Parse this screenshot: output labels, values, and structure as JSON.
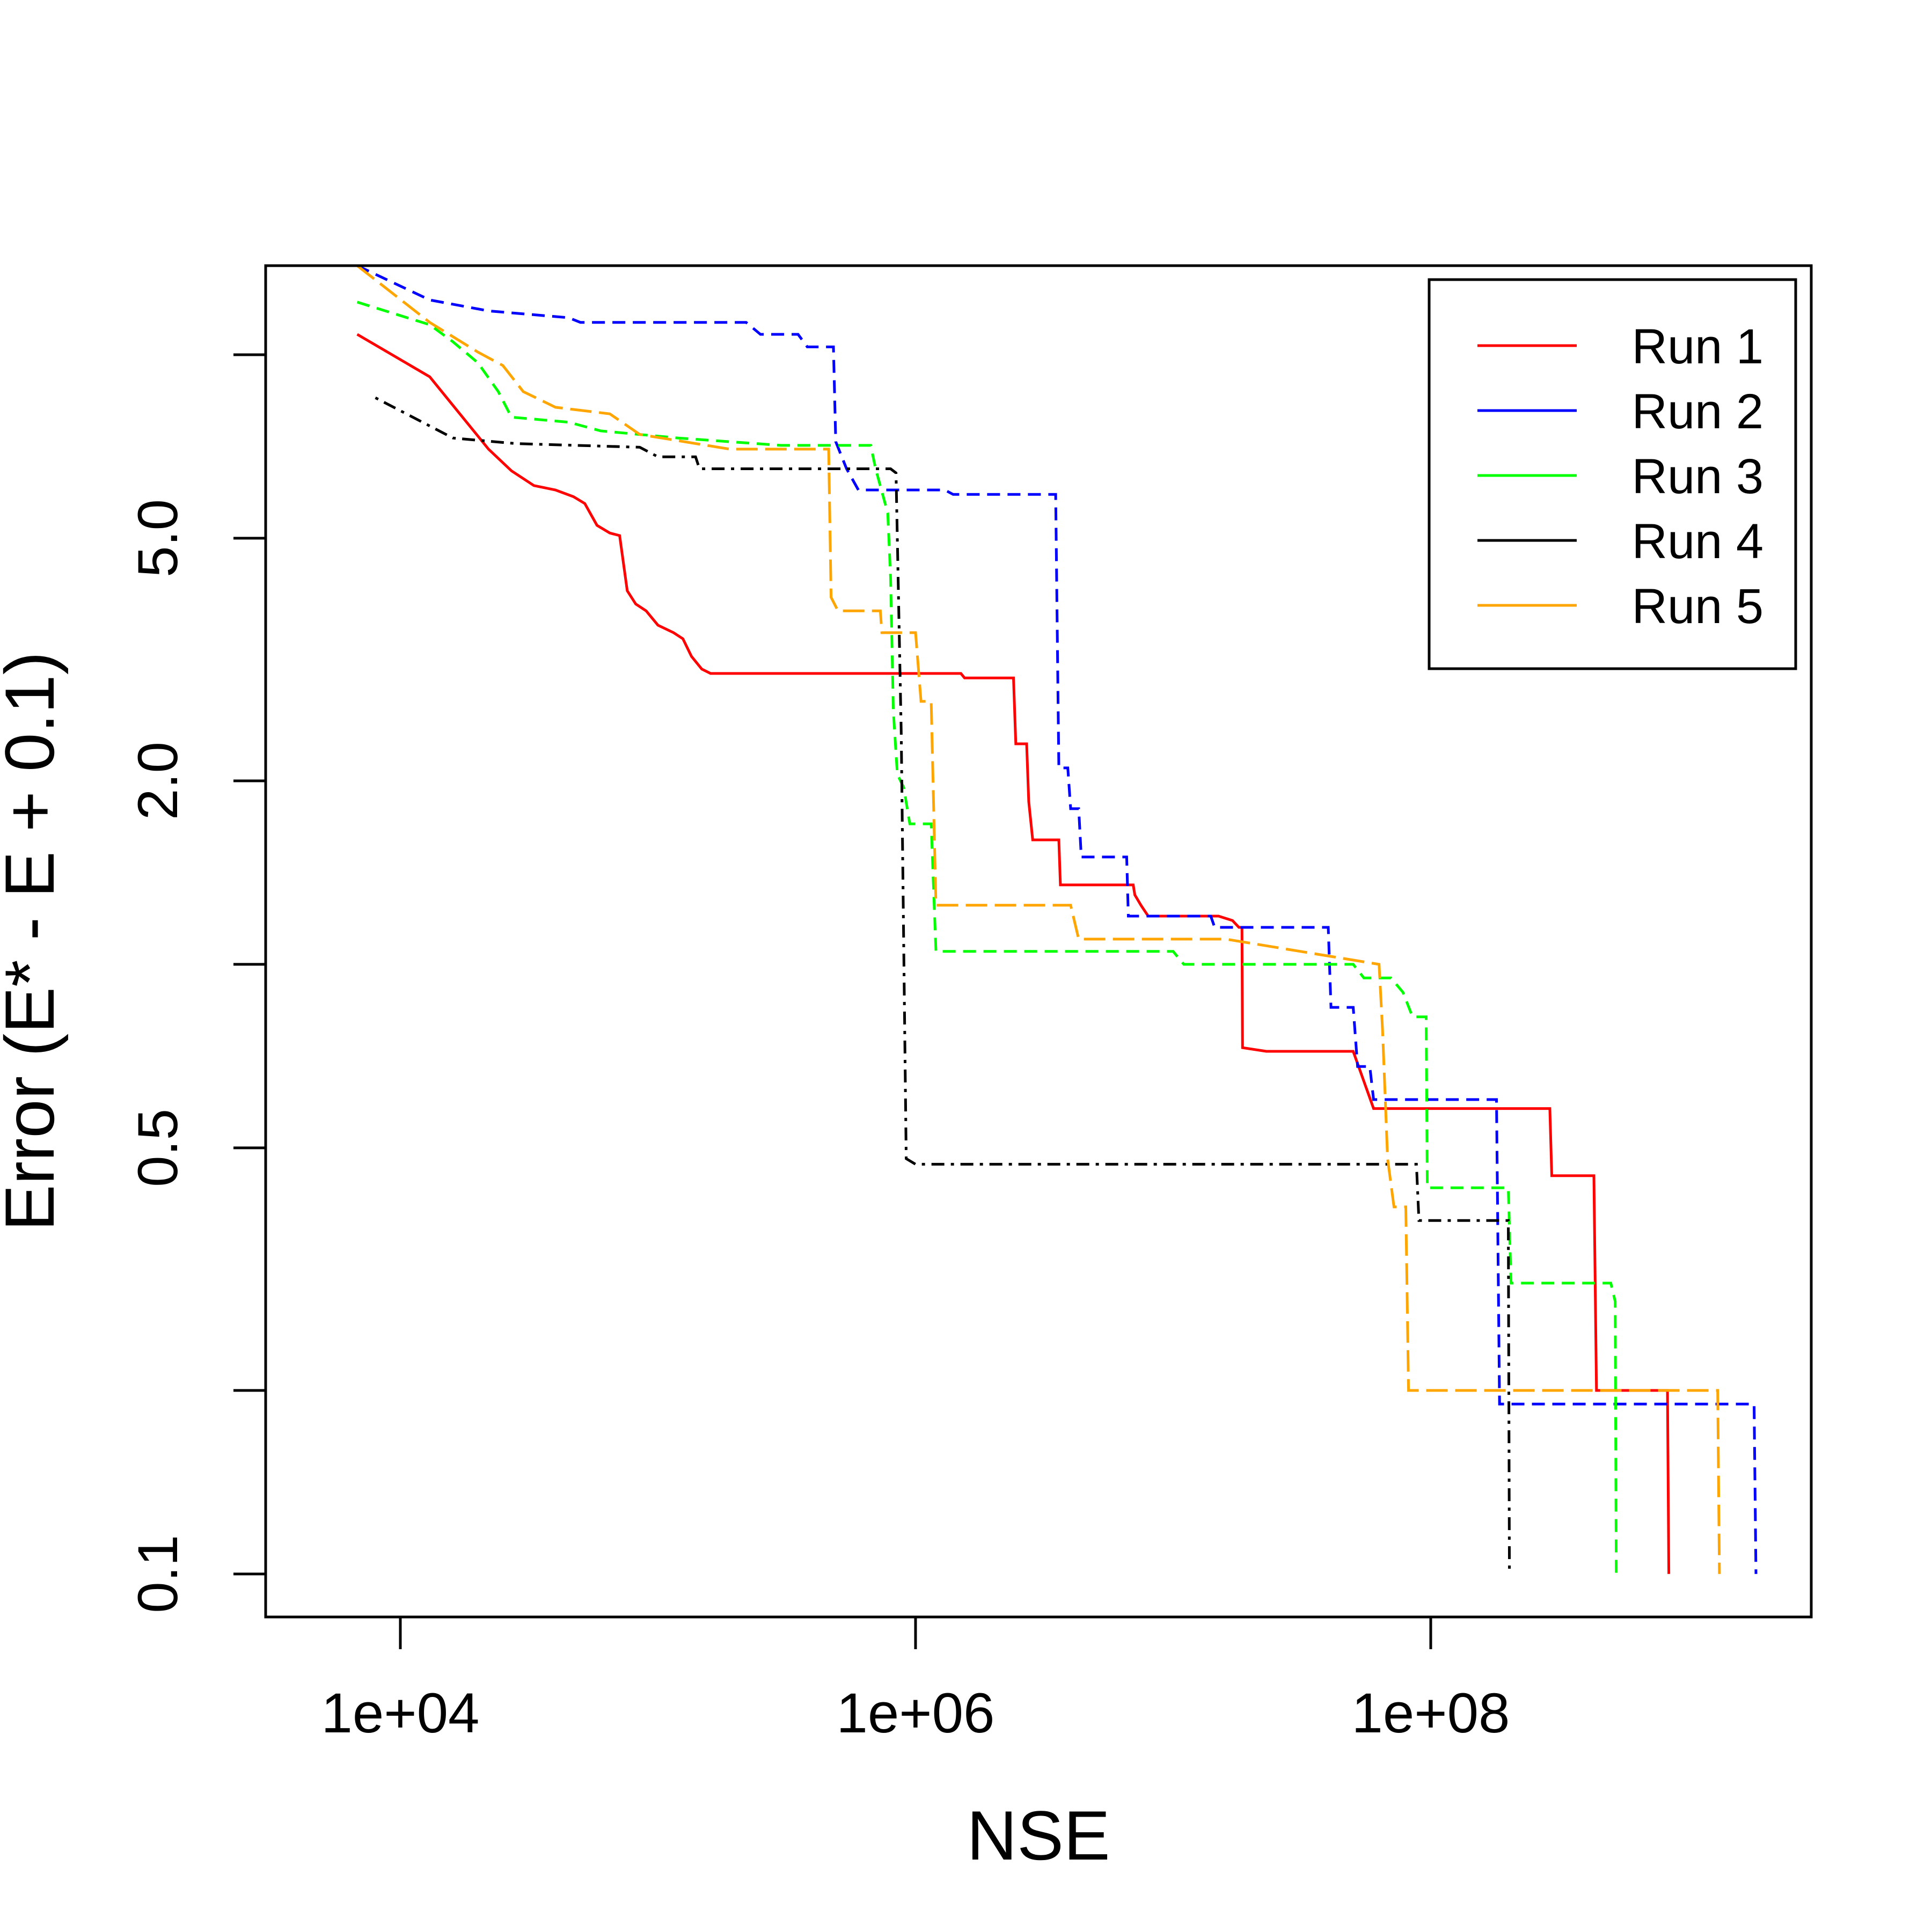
{
  "chart_data": {
    "type": "line",
    "title": "",
    "xlabel": "NSE",
    "ylabel": "Error (E* - E + 0.1)",
    "x_scale": "log",
    "y_scale": "log",
    "xlim": [
      3000,
      3000000000
    ],
    "ylim": [
      0.085,
      14
    ],
    "x_ticks": [
      10000,
      1000000,
      100000000
    ],
    "x_tick_labels": [
      "1e+04",
      "1e+06",
      "1e+08"
    ],
    "y_ticks": [
      0.1,
      0.2,
      0.5,
      1.0,
      2.0,
      5.0,
      10.0
    ],
    "y_tick_labels": [
      "0.1",
      "",
      "0.5",
      "",
      "2.0",
      "5.0",
      ""
    ],
    "legend_position": "top-right",
    "grid": false,
    "series": [
      {
        "name": "Run 1",
        "color": "#ff0000",
        "dash": "solid",
        "points": [
          [
            6800,
            10.8
          ],
          [
            13000,
            9.2
          ],
          [
            22000,
            7.0
          ],
          [
            27000,
            6.45
          ],
          [
            33000,
            6.1
          ],
          [
            40000,
            6.0
          ],
          [
            47000,
            5.85
          ],
          [
            52000,
            5.7
          ],
          [
            58000,
            5.25
          ],
          [
            65000,
            5.1
          ],
          [
            71000,
            5.05
          ],
          [
            76000,
            4.1
          ],
          [
            82000,
            3.9
          ],
          [
            90000,
            3.8
          ],
          [
            100000,
            3.6
          ],
          [
            115000,
            3.5
          ],
          [
            125000,
            3.42
          ],
          [
            135000,
            3.2
          ],
          [
            148000,
            3.05
          ],
          [
            160000,
            3.0
          ],
          [
            1500000,
            3.0
          ],
          [
            1550000,
            2.95
          ],
          [
            2400000,
            2.95
          ],
          [
            2450000,
            2.3
          ],
          [
            2700000,
            2.3
          ],
          [
            2750000,
            1.85
          ],
          [
            2850000,
            1.6
          ],
          [
            3100000,
            1.6
          ],
          [
            3600000,
            1.6
          ],
          [
            3650000,
            1.35
          ],
          [
            7000000,
            1.35
          ],
          [
            7100000,
            1.3
          ],
          [
            7500000,
            1.25
          ],
          [
            8000000,
            1.2
          ],
          [
            15000000,
            1.2
          ],
          [
            17000000,
            1.18
          ],
          [
            18000000,
            1.15
          ],
          [
            18500000,
            1.15
          ],
          [
            18600000,
            0.73
          ],
          [
            23000000,
            0.72
          ],
          [
            50000000,
            0.72
          ],
          [
            60000000,
            0.58
          ],
          [
            290000000,
            0.58
          ],
          [
            295000000,
            0.45
          ],
          [
            430000000,
            0.45
          ],
          [
            440000000,
            0.2
          ],
          [
            830000000,
            0.2
          ],
          [
            840000000,
            0.1
          ]
        ]
      },
      {
        "name": "Run 2",
        "color": "#0000ff",
        "dash": "dashed",
        "points": [
          [
            6800,
            14.0
          ],
          [
            13000,
            12.3
          ],
          [
            22000,
            11.8
          ],
          [
            45000,
            11.5
          ],
          [
            50000,
            11.3
          ],
          [
            220000,
            11.3
          ],
          [
            250000,
            10.8
          ],
          [
            350000,
            10.8
          ],
          [
            380000,
            10.3
          ],
          [
            480000,
            10.3
          ],
          [
            490000,
            7.2
          ],
          [
            540000,
            6.5
          ],
          [
            600000,
            6.0
          ],
          [
            1300000,
            6.0
          ],
          [
            1400000,
            5.9
          ],
          [
            3500000,
            5.9
          ],
          [
            3600000,
            2.1
          ],
          [
            3900000,
            2.1
          ],
          [
            4000000,
            1.8
          ],
          [
            4300000,
            1.8
          ],
          [
            4400000,
            1.5
          ],
          [
            6600000,
            1.5
          ],
          [
            6700000,
            1.2
          ],
          [
            14000000,
            1.2
          ],
          [
            14500000,
            1.15
          ],
          [
            40000000,
            1.15
          ],
          [
            41000000,
            0.85
          ],
          [
            50000000,
            0.85
          ],
          [
            52000000,
            0.68
          ],
          [
            58000000,
            0.68
          ],
          [
            60000000,
            0.6
          ],
          [
            180000000,
            0.6
          ],
          [
            185000000,
            0.19
          ],
          [
            1800000000,
            0.19
          ],
          [
            1830000000,
            0.1
          ]
        ]
      },
      {
        "name": "Run 3",
        "color": "#00ff00",
        "dash": "dashed",
        "points": [
          [
            6800,
            12.2
          ],
          [
            13000,
            11.2
          ],
          [
            16000,
            10.5
          ],
          [
            20000,
            9.7
          ],
          [
            24000,
            8.7
          ],
          [
            27000,
            7.9
          ],
          [
            45000,
            7.75
          ],
          [
            60000,
            7.5
          ],
          [
            120000,
            7.3
          ],
          [
            300000,
            7.1
          ],
          [
            670000,
            7.1
          ],
          [
            700000,
            6.5
          ],
          [
            780000,
            5.5
          ],
          [
            800000,
            4.3
          ],
          [
            820000,
            2.6
          ],
          [
            850000,
            2.05
          ],
          [
            900000,
            1.95
          ],
          [
            950000,
            1.7
          ],
          [
            1150000,
            1.7
          ],
          [
            1200000,
            1.05
          ],
          [
            10000000,
            1.05
          ],
          [
            11000000,
            1.0
          ],
          [
            50000000,
            1.0
          ],
          [
            55000000,
            0.95
          ],
          [
            70000000,
            0.95
          ],
          [
            78000000,
            0.9
          ],
          [
            85000000,
            0.82
          ],
          [
            90000000,
            0.82
          ],
          [
            96000000,
            0.82
          ],
          [
            97000000,
            0.43
          ],
          [
            170000000,
            0.43
          ],
          [
            200000000,
            0.43
          ],
          [
            205000000,
            0.3
          ],
          [
            500000000,
            0.3
          ],
          [
            520000000,
            0.28
          ],
          [
            525000000,
            0.1
          ]
        ]
      },
      {
        "name": "Run 4",
        "color": "#000000",
        "dash": "dashdot",
        "points": [
          [
            8000,
            8.5
          ],
          [
            16000,
            7.3
          ],
          [
            28000,
            7.15
          ],
          [
            85000,
            7.05
          ],
          [
            100000,
            6.8
          ],
          [
            140000,
            6.8
          ],
          [
            145000,
            6.5
          ],
          [
            800000,
            6.5
          ],
          [
            840000,
            6.4
          ],
          [
            880000,
            2.4
          ],
          [
            920000,
            0.48
          ],
          [
            1000000,
            0.47
          ],
          [
            88000000,
            0.47
          ],
          [
            90000000,
            0.38
          ],
          [
            190000000,
            0.38
          ],
          [
            200000000,
            0.38
          ],
          [
            202000000,
            0.1
          ]
        ]
      },
      {
        "name": "Run 5",
        "color": "#ffa500",
        "dash": "longdash",
        "points": [
          [
            6800,
            14.0
          ],
          [
            13000,
            11.3
          ],
          [
            20000,
            10.1
          ],
          [
            25000,
            9.6
          ],
          [
            30000,
            8.7
          ],
          [
            40000,
            8.2
          ],
          [
            65000,
            8.0
          ],
          [
            85000,
            7.4
          ],
          [
            190000,
            7.0
          ],
          [
            460000,
            7.0
          ],
          [
            470000,
            4.0
          ],
          [
            500000,
            3.8
          ],
          [
            730000,
            3.8
          ],
          [
            740000,
            3.5
          ],
          [
            1000000,
            3.5
          ],
          [
            1050000,
            2.7
          ],
          [
            1150000,
            2.7
          ],
          [
            1200000,
            1.25
          ],
          [
            3500000,
            1.25
          ],
          [
            3700000,
            1.25
          ],
          [
            4000000,
            1.25
          ],
          [
            4300000,
            1.1
          ],
          [
            16000000,
            1.1
          ],
          [
            63000000,
            1.0
          ],
          [
            65000000,
            0.78
          ],
          [
            68000000,
            0.48
          ],
          [
            72000000,
            0.4
          ],
          [
            80000000,
            0.4
          ],
          [
            82000000,
            0.2
          ],
          [
            1300000000,
            0.2
          ],
          [
            1320000000,
            0.1
          ]
        ]
      }
    ]
  }
}
